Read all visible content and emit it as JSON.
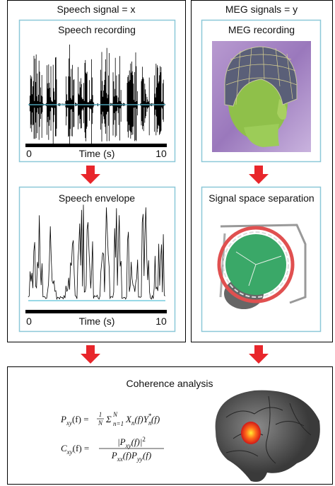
{
  "left_panel": {
    "title": "Speech signal = x",
    "recording": {
      "title": "Speech recording",
      "axis": {
        "start": "0",
        "label": "Time (s)",
        "end": "10"
      }
    },
    "envelope": {
      "title": "Speech envelope",
      "axis": {
        "start": "0",
        "label": "Time (s)",
        "end": "10"
      }
    }
  },
  "right_panel": {
    "title": "MEG signals = y",
    "recording": {
      "title": "MEG recording"
    },
    "separation": {
      "title": "Signal space separation"
    }
  },
  "coherence": {
    "title": "Coherence analysis",
    "formula1": [
      "P",
      "xy",
      "(f) = ",
      "1",
      "N",
      "Σ",
      "n=1",
      "N",
      "X",
      "n",
      "(f)",
      "Y",
      "n",
      "*",
      "(f)"
    ],
    "formula2": [
      "C",
      "xy",
      "(f) = ",
      "|P",
      "xy",
      "(f)|",
      "2",
      "P",
      "xx",
      "(f)P",
      "yy",
      "(f)"
    ]
  }
}
